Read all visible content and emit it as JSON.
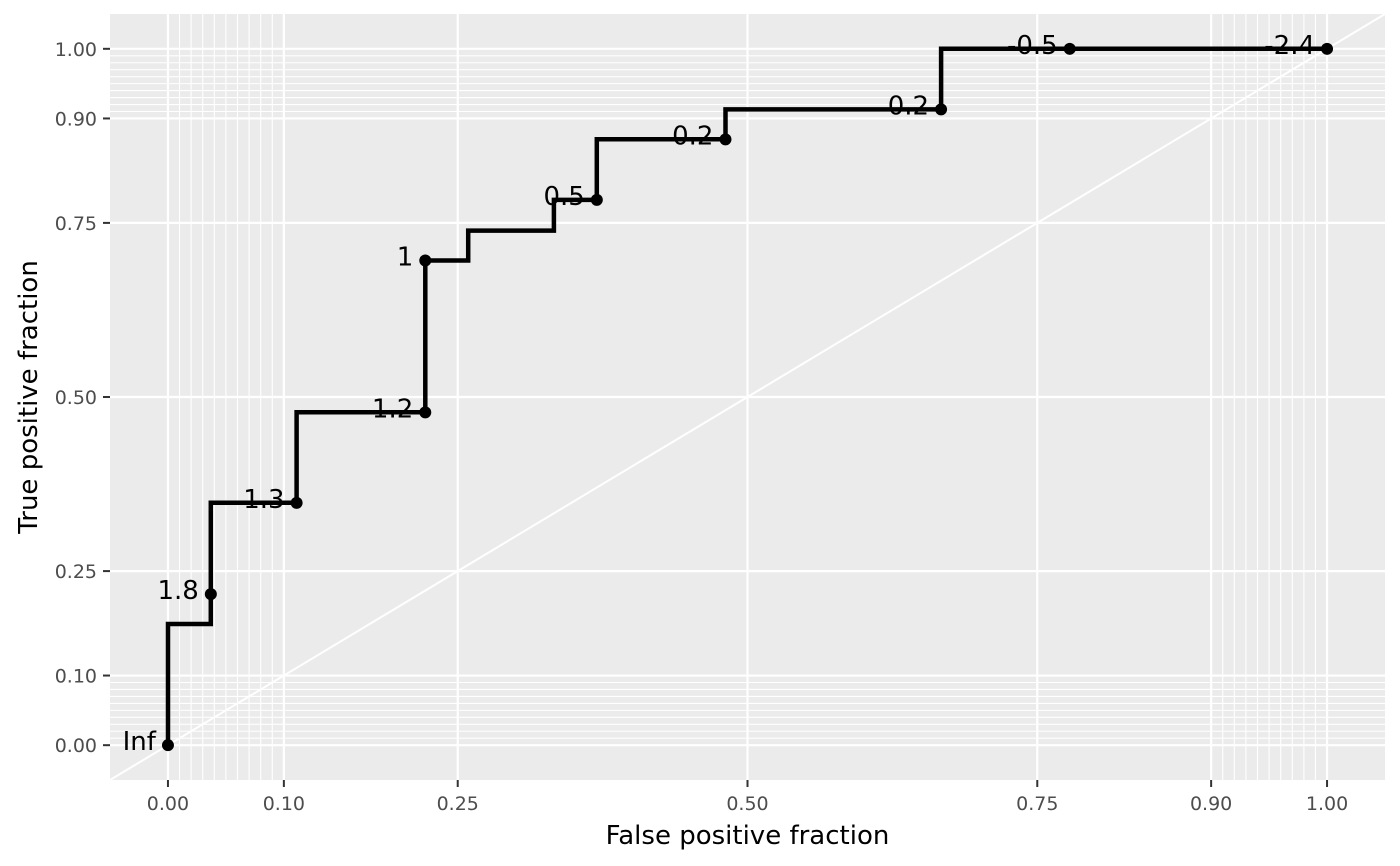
{
  "chart_data": {
    "type": "line",
    "xlabel": "False positive fraction",
    "ylabel": "True positive fraction",
    "xlim": [
      -0.05,
      1.05
    ],
    "ylim": [
      -0.05,
      1.05
    ],
    "x_ticks": [
      0.0,
      0.1,
      0.25,
      0.5,
      0.75,
      0.9,
      1.0
    ],
    "x_tick_labels": [
      "0.00",
      "0.10",
      "0.25",
      "0.50",
      "0.75",
      "0.90",
      "1.00"
    ],
    "y_ticks": [
      0.0,
      0.1,
      0.25,
      0.5,
      0.75,
      0.9,
      1.0
    ],
    "y_tick_labels": [
      "0.00",
      "0.10",
      "0.25",
      "0.50",
      "0.75",
      "0.90",
      "1.00"
    ],
    "minor_grid": [
      0.01,
      0.02,
      0.03,
      0.04,
      0.05,
      0.06,
      0.07,
      0.08,
      0.09,
      0.91,
      0.92,
      0.93,
      0.94,
      0.95,
      0.96,
      0.97,
      0.98,
      0.99
    ],
    "grid": true,
    "background": "#ebebeb",
    "grid_color": "#ffffff",
    "line_color": "#000000",
    "reference_diagonal": true,
    "step_path": [
      {
        "fpr": 0.0,
        "tpr": 0.0
      },
      {
        "fpr": 0.0,
        "tpr": 0.174
      },
      {
        "fpr": 0.037,
        "tpr": 0.174
      },
      {
        "fpr": 0.037,
        "tpr": 0.217
      },
      {
        "fpr": 0.037,
        "tpr": 0.348
      },
      {
        "fpr": 0.111,
        "tpr": 0.348
      },
      {
        "fpr": 0.111,
        "tpr": 0.478
      },
      {
        "fpr": 0.222,
        "tpr": 0.478
      },
      {
        "fpr": 0.222,
        "tpr": 0.696
      },
      {
        "fpr": 0.259,
        "tpr": 0.696
      },
      {
        "fpr": 0.259,
        "tpr": 0.739
      },
      {
        "fpr": 0.333,
        "tpr": 0.739
      },
      {
        "fpr": 0.333,
        "tpr": 0.783
      },
      {
        "fpr": 0.37,
        "tpr": 0.783
      },
      {
        "fpr": 0.37,
        "tpr": 0.87
      },
      {
        "fpr": 0.481,
        "tpr": 0.87
      },
      {
        "fpr": 0.481,
        "tpr": 0.913
      },
      {
        "fpr": 0.667,
        "tpr": 0.913
      },
      {
        "fpr": 0.667,
        "tpr": 1.0
      },
      {
        "fpr": 1.0,
        "tpr": 1.0
      }
    ],
    "cutoff_points": [
      {
        "fpr": 0.0,
        "tpr": 0.0,
        "label": "Inf"
      },
      {
        "fpr": 0.037,
        "tpr": 0.217,
        "label": "1.8"
      },
      {
        "fpr": 0.111,
        "tpr": 0.348,
        "label": "1.3"
      },
      {
        "fpr": 0.222,
        "tpr": 0.478,
        "label": "1.2"
      },
      {
        "fpr": 0.222,
        "tpr": 0.696,
        "label": "1"
      },
      {
        "fpr": 0.37,
        "tpr": 0.783,
        "label": "0.5"
      },
      {
        "fpr": 0.481,
        "tpr": 0.87,
        "label": "0.2"
      },
      {
        "fpr": 0.667,
        "tpr": 0.913,
        "label": "0.2"
      },
      {
        "fpr": 0.778,
        "tpr": 1.0,
        "label": "-0.5"
      },
      {
        "fpr": 1.0,
        "tpr": 1.0,
        "label": "-2.4"
      }
    ]
  }
}
